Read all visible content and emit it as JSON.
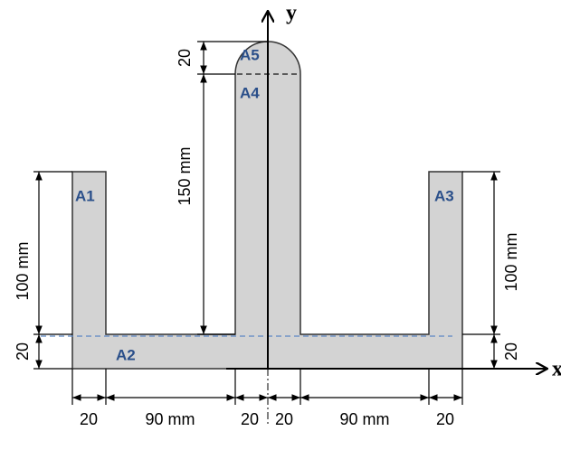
{
  "axes": {
    "x": "x",
    "y": "y"
  },
  "areas": [
    "A1",
    "A2",
    "A3",
    "A4",
    "A5"
  ],
  "dimensions": {
    "web_top": "20",
    "web_height": "150 mm",
    "left_height": "100 mm",
    "right_height": "100 mm",
    "left_flange": "20",
    "right_flange": "20",
    "bottom": [
      "20",
      "90 mm",
      "20",
      "20",
      "90 mm",
      "20"
    ]
  }
}
